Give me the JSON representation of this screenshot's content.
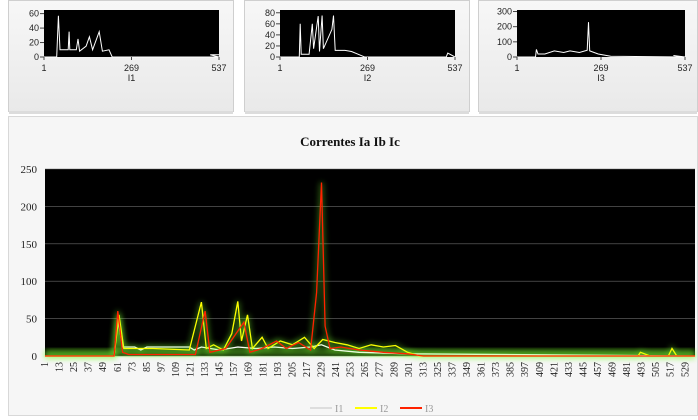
{
  "colors": {
    "I1": "#ffffff",
    "I2": "#ffff00",
    "I3": "#ff2200",
    "plot_bg": "#000000",
    "glow": "#7aff30"
  },
  "chart_data": [
    {
      "type": "line",
      "series": [
        {
          "name": "I1",
          "color": "#000000",
          "points": [
            [
              1,
              0
            ],
            [
              40,
              0
            ],
            [
              45,
              57
            ],
            [
              50,
              10
            ],
            [
              75,
              10
            ],
            [
              78,
              35
            ],
            [
              80,
              10
            ],
            [
              100,
              10
            ],
            [
              105,
              25
            ],
            [
              110,
              8
            ],
            [
              130,
              15
            ],
            [
              140,
              28
            ],
            [
              150,
              10
            ],
            [
              170,
              35
            ],
            [
              180,
              8
            ],
            [
              200,
              10
            ],
            [
              210,
              0
            ],
            [
              537,
              0
            ],
            [
              510,
              3
            ],
            [
              537,
              3
            ]
          ]
        }
      ],
      "xticks": [
        1,
        269,
        537
      ],
      "yticks": [
        0,
        20,
        40,
        60
      ],
      "ylim": [
        0,
        65
      ],
      "xlim": [
        1,
        537
      ],
      "xlabel": "I1"
    },
    {
      "type": "line",
      "series": [
        {
          "name": "I2",
          "color": "#000000",
          "points": [
            [
              1,
              0
            ],
            [
              60,
              0
            ],
            [
              63,
              60
            ],
            [
              66,
              5
            ],
            [
              90,
              5
            ],
            [
              100,
              60
            ],
            [
              104,
              15
            ],
            [
              118,
              74
            ],
            [
              122,
              10
            ],
            [
              130,
              75
            ],
            [
              134,
              15
            ],
            [
              160,
              50
            ],
            [
              165,
              75
            ],
            [
              170,
              12
            ],
            [
              200,
              12
            ],
            [
              220,
              10
            ],
            [
              240,
              5
            ],
            [
              260,
              0
            ],
            [
              510,
              0
            ],
            [
              515,
              7
            ],
            [
              537,
              0
            ]
          ]
        }
      ],
      "xticks": [
        1,
        269,
        537
      ],
      "yticks": [
        0,
        20,
        40,
        60,
        80
      ],
      "ylim": [
        0,
        85
      ],
      "xlim": [
        1,
        537
      ],
      "xlabel": "I2"
    },
    {
      "type": "line",
      "series": [
        {
          "name": "I3",
          "color": "#000000",
          "points": [
            [
              1,
              0
            ],
            [
              60,
              0
            ],
            [
              63,
              50
            ],
            [
              68,
              20
            ],
            [
              90,
              20
            ],
            [
              120,
              40
            ],
            [
              150,
              30
            ],
            [
              170,
              40
            ],
            [
              200,
              30
            ],
            [
              225,
              45
            ],
            [
              229,
              230
            ],
            [
              233,
              40
            ],
            [
              260,
              20
            ],
            [
              300,
              5
            ],
            [
              537,
              0
            ],
            [
              500,
              10
            ]
          ]
        }
      ],
      "xticks": [
        1,
        269,
        537
      ],
      "yticks": [
        0,
        100,
        200,
        300
      ],
      "ylim": [
        0,
        310
      ],
      "xlim": [
        1,
        537
      ],
      "xlabel": "I3"
    },
    {
      "type": "line",
      "title": "Correntes Ia Ib Ic",
      "ylim": [
        0,
        250
      ],
      "xlim": [
        1,
        537
      ],
      "yticks": [
        0,
        50,
        100,
        150,
        200,
        250
      ],
      "xticks": [
        1,
        13,
        25,
        37,
        49,
        61,
        73,
        85,
        97,
        109,
        121,
        133,
        145,
        157,
        169,
        181,
        193,
        205,
        217,
        229,
        241,
        253,
        265,
        277,
        289,
        301,
        313,
        325,
        337,
        349,
        361,
        373,
        385,
        397,
        409,
        421,
        433,
        445,
        457,
        469,
        481,
        493,
        505,
        517,
        529
      ],
      "legend": "bottom",
      "series": [
        {
          "name": "I1",
          "color": "#ffffff",
          "points": [
            [
              1,
              0
            ],
            [
              58,
              0
            ],
            [
              61,
              50
            ],
            [
              65,
              12
            ],
            [
              75,
              12
            ],
            [
              80,
              8
            ],
            [
              85,
              12
            ],
            [
              100,
              12
            ],
            [
              120,
              12
            ],
            [
              124,
              8
            ],
            [
              130,
              12
            ],
            [
              145,
              8
            ],
            [
              160,
              12
            ],
            [
              175,
              10
            ],
            [
              190,
              12
            ],
            [
              205,
              10
            ],
            [
              220,
              12
            ],
            [
              229,
              15
            ],
            [
              240,
              8
            ],
            [
              260,
              5
            ],
            [
              300,
              3
            ],
            [
              537,
              0
            ]
          ]
        },
        {
          "name": "I2",
          "color": "#ffff00",
          "points": [
            [
              1,
              0
            ],
            [
              58,
              0
            ],
            [
              62,
              55
            ],
            [
              66,
              10
            ],
            [
              90,
              10
            ],
            [
              120,
              8
            ],
            [
              130,
              72
            ],
            [
              134,
              10
            ],
            [
              140,
              15
            ],
            [
              148,
              8
            ],
            [
              155,
              30
            ],
            [
              160,
              73
            ],
            [
              163,
              20
            ],
            [
              168,
              55
            ],
            [
              172,
              10
            ],
            [
              180,
              25
            ],
            [
              185,
              10
            ],
            [
              195,
              20
            ],
            [
              205,
              15
            ],
            [
              215,
              25
            ],
            [
              223,
              10
            ],
            [
              230,
              22
            ],
            [
              240,
              18
            ],
            [
              250,
              15
            ],
            [
              260,
              10
            ],
            [
              270,
              15
            ],
            [
              280,
              12
            ],
            [
              290,
              14
            ],
            [
              300,
              5
            ],
            [
              310,
              0
            ],
            [
              490,
              0
            ],
            [
              492,
              5
            ],
            [
              500,
              0
            ],
            [
              515,
              0
            ],
            [
              518,
              10
            ],
            [
              522,
              0
            ],
            [
              537,
              0
            ]
          ]
        },
        {
          "name": "I3",
          "color": "#ff2200",
          "points": [
            [
              1,
              0
            ],
            [
              58,
              0
            ],
            [
              61,
              60
            ],
            [
              65,
              5
            ],
            [
              70,
              2
            ],
            [
              90,
              2
            ],
            [
              125,
              2
            ],
            [
              133,
              60
            ],
            [
              137,
              5
            ],
            [
              150,
              10
            ],
            [
              165,
              45
            ],
            [
              170,
              5
            ],
            [
              180,
              10
            ],
            [
              192,
              20
            ],
            [
              200,
              10
            ],
            [
              210,
              18
            ],
            [
              220,
              8
            ],
            [
              225,
              85
            ],
            [
              229,
              232
            ],
            [
              232,
              40
            ],
            [
              236,
              10
            ],
            [
              245,
              12
            ],
            [
              260,
              8
            ],
            [
              280,
              5
            ],
            [
              300,
              3
            ],
            [
              313,
              0
            ],
            [
              537,
              0
            ]
          ]
        }
      ]
    }
  ]
}
